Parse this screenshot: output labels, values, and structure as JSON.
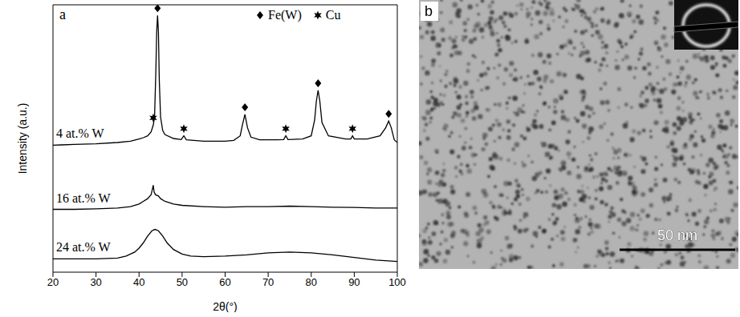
{
  "chart_data": {
    "type": "line",
    "panel_label": "a",
    "x_label": "2θ(°)",
    "y_label": "Intensity (a.u.)",
    "xlim": [
      20,
      100
    ],
    "xticks": [
      20,
      30,
      40,
      50,
      60,
      70,
      80,
      90,
      100
    ],
    "ylim": [
      0,
      100
    ],
    "tick_labels": "x",
    "legend": "upper right",
    "series": [
      {
        "name": "4 at.% W",
        "color": "#000000",
        "x": [
          20,
          22,
          25,
          30,
          35,
          38,
          40,
          41,
          42,
          42.8,
          43.3,
          43.6,
          43.9,
          44.1,
          44.3,
          44.5,
          44.7,
          45,
          45.5,
          46,
          48,
          49.8,
          50.4,
          51,
          55,
          60,
          62,
          63.5,
          64,
          64.6,
          65.2,
          66,
          68,
          72,
          73.6,
          74.1,
          74.6,
          78,
          80,
          80.8,
          81.2,
          81.6,
          82,
          82.5,
          84,
          88,
          89.2,
          89.6,
          90,
          93,
          96,
          97.3,
          98,
          98.6,
          99.3,
          100
        ],
        "values": [
          47.5,
          47.6,
          47.8,
          48,
          48.5,
          49,
          49.8,
          50.3,
          51,
          52.5,
          55,
          58,
          75,
          90,
          96,
          90,
          72,
          58,
          53,
          51.5,
          50,
          49.6,
          51,
          49.5,
          49,
          49,
          49.3,
          51,
          55,
          59,
          54,
          50.5,
          49.5,
          49.5,
          49.6,
          51,
          49.6,
          49.8,
          51,
          57,
          64,
          68,
          64,
          56,
          51,
          49.8,
          49.8,
          51,
          49.8,
          49.8,
          51,
          54,
          56.5,
          54,
          49.5,
          48.5
        ]
      },
      {
        "name": "16 at.% W",
        "color": "#000000",
        "x": [
          20,
          25,
          30,
          35,
          38,
          40,
          41,
          42,
          42.8,
          43.1,
          43.3,
          43.5,
          43.8,
          44.5,
          45,
          46,
          48,
          50,
          55,
          60,
          65,
          70,
          75,
          80,
          85,
          90,
          95,
          100
        ],
        "values": [
          23.5,
          23.5,
          23.7,
          24,
          24.5,
          25.5,
          26.5,
          27.5,
          29,
          31,
          32.5,
          30,
          29,
          28.5,
          27.5,
          26.5,
          25.5,
          25,
          24.5,
          24.3,
          24.5,
          24.5,
          24.7,
          24.5,
          24.3,
          24.2,
          24,
          24
        ]
      },
      {
        "name": "24 at.% W",
        "color": "#000000",
        "x": [
          20,
          25,
          30,
          35,
          37,
          39,
          40,
          41,
          42,
          43,
          43.7,
          44.5,
          45.5,
          46.5,
          48,
          50,
          52,
          55,
          60,
          65,
          70,
          75,
          80,
          85,
          90,
          95,
          100
        ],
        "values": [
          5,
          5,
          5,
          5.3,
          6,
          7.5,
          9,
          11,
          13.5,
          15.5,
          16,
          15.5,
          13.5,
          11,
          8.5,
          6.8,
          6,
          5.8,
          6,
          6.5,
          7.2,
          7.5,
          7.2,
          6.5,
          5.5,
          4.5,
          4
        ]
      }
    ],
    "markers": [
      {
        "name": "Fe(W)",
        "marker": "diamond",
        "color": "#000000",
        "x": [
          44.3,
          64.6,
          81.6,
          98
        ]
      },
      {
        "name": "Cu",
        "marker": "star",
        "color": "#000000",
        "x": [
          43.3,
          50.4,
          74.1,
          89.6
        ]
      }
    ]
  },
  "image": {
    "panel_label": "b",
    "scale_bar": "50 nm"
  }
}
